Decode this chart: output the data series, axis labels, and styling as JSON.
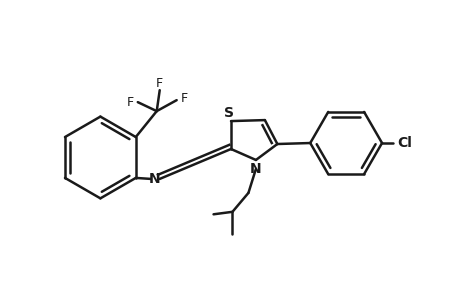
{
  "background_color": "#ffffff",
  "line_color": "#1a1a1a",
  "bond_width": 1.8,
  "figsize": [
    4.6,
    3.0
  ],
  "dpi": 100,
  "xlim": [
    0.0,
    9.2
  ],
  "ylim": [
    1.2,
    6.2
  ]
}
